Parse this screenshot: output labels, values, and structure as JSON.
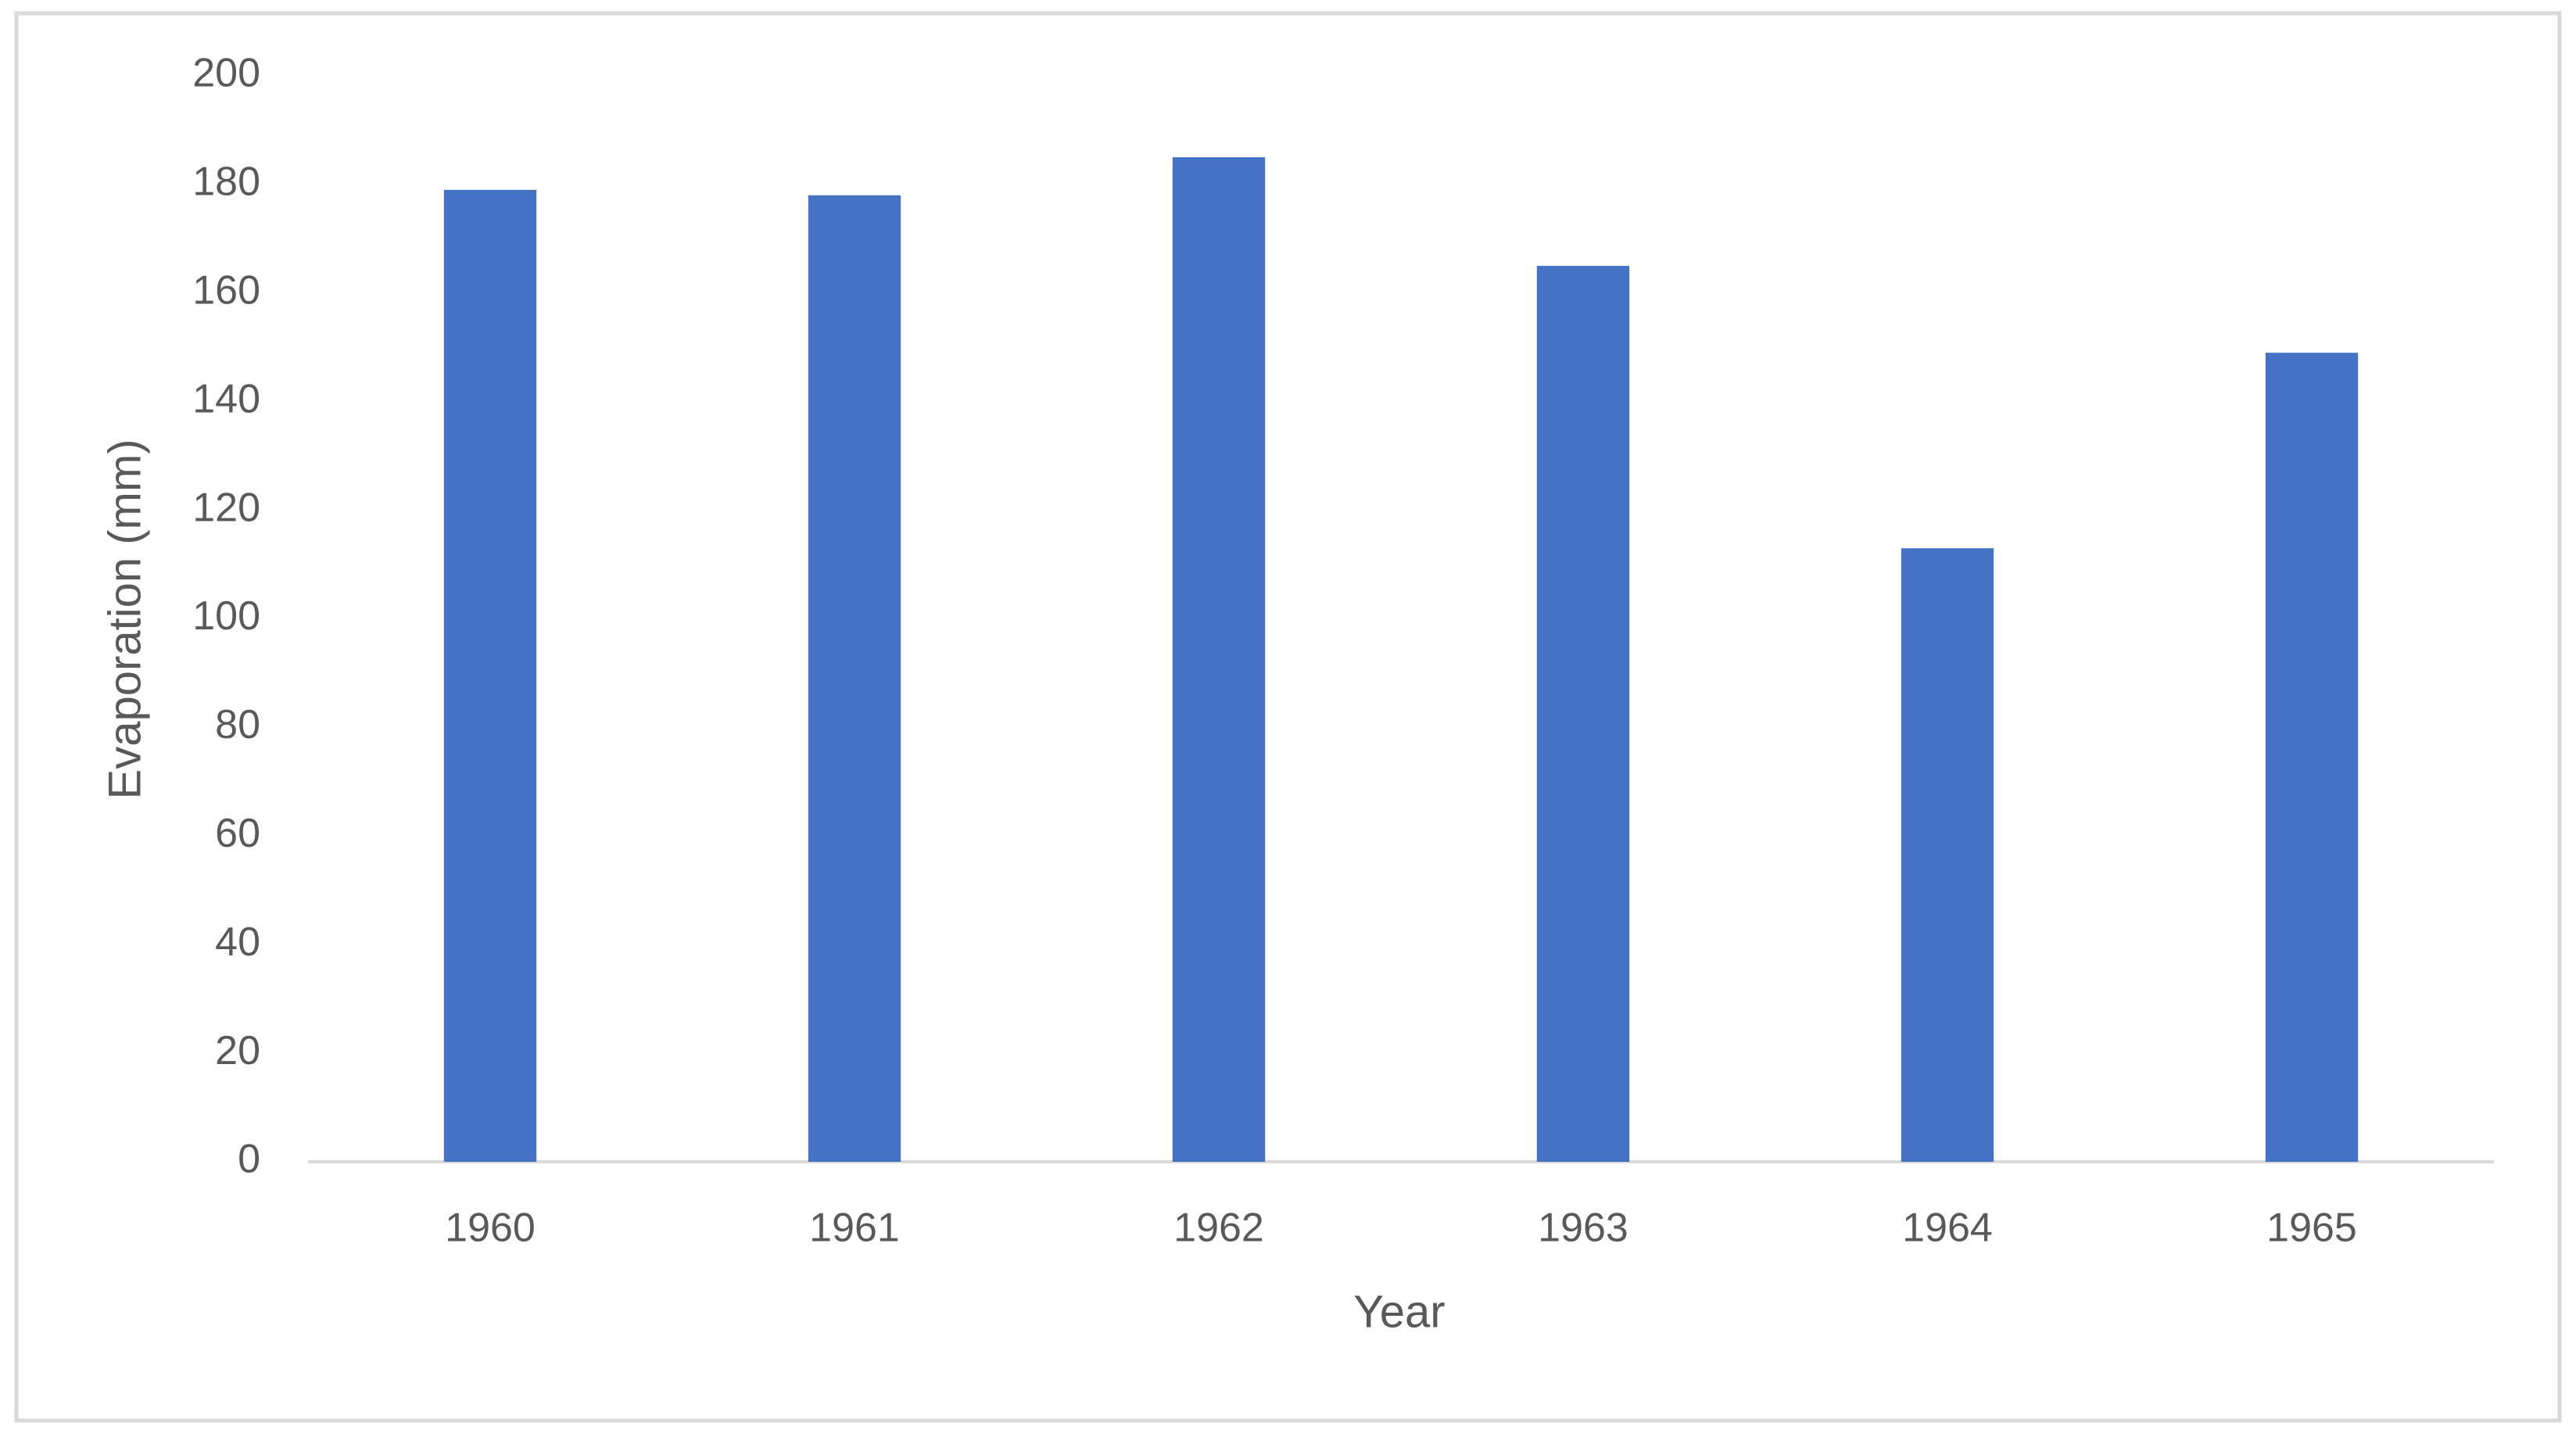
{
  "chart_data": {
    "type": "bar",
    "x_label": "Year",
    "y_label": "Evaporation (mm)",
    "categories": [
      "1960",
      "1961",
      "1962",
      "1963",
      "1964",
      "1965"
    ],
    "values": [
      179,
      178,
      185,
      165,
      113,
      149
    ],
    "color": "#4472c4",
    "ylim": [
      0,
      200
    ],
    "yticks": [
      0,
      20,
      40,
      60,
      80,
      100,
      120,
      140,
      160,
      180,
      200
    ],
    "grid": false
  }
}
